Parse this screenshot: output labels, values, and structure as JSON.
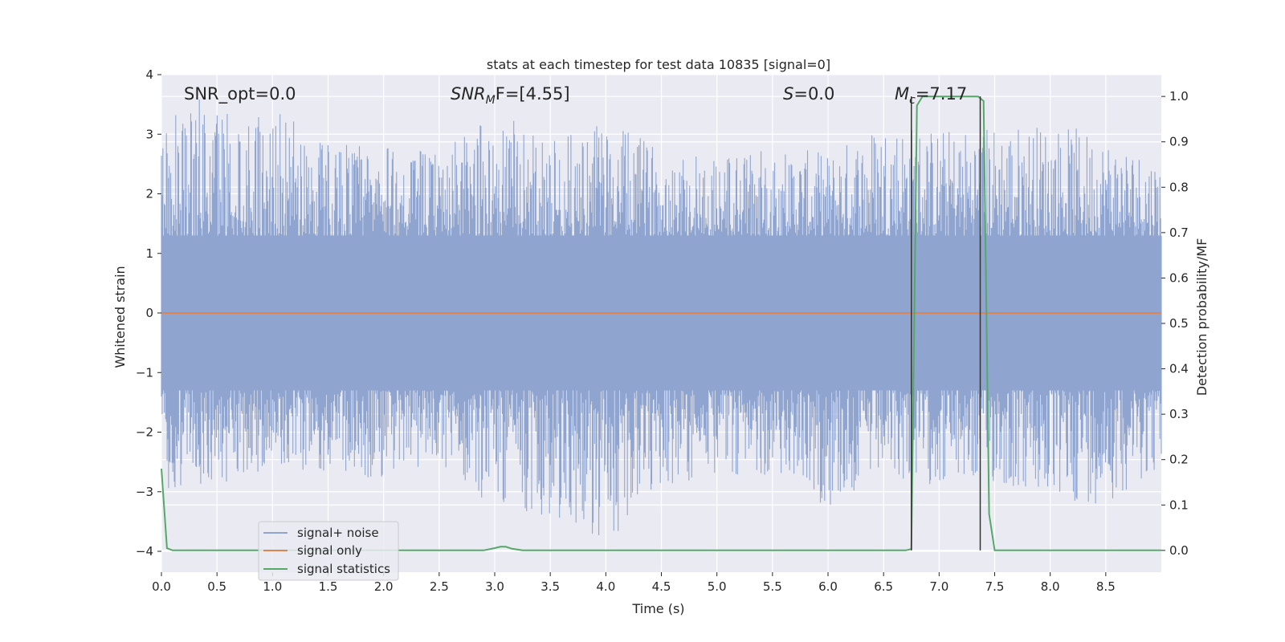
{
  "chart_data": {
    "type": "line",
    "title": "stats at each timestep for test data 10835 [signal=0]",
    "xlabel": "Time (s)",
    "ylabel": "Whitened strain",
    "y2label": "Detection probability/MF",
    "xlim": [
      0.0,
      9.0
    ],
    "ylim": [
      -4.35,
      4.0
    ],
    "y2lim": [
      -0.048,
      1.048
    ],
    "x_ticks": [
      0.0,
      0.5,
      1.0,
      1.5,
      2.0,
      2.5,
      3.0,
      3.5,
      4.0,
      4.5,
      5.0,
      5.5,
      6.0,
      6.5,
      7.0,
      7.5,
      8.0,
      8.5
    ],
    "x_tick_labels": [
      "0.0",
      "0.5",
      "1.0",
      "1.5",
      "2.0",
      "2.5",
      "3.0",
      "3.5",
      "4.0",
      "4.5",
      "5.0",
      "5.5",
      "6.0",
      "6.5",
      "7.0",
      "7.5",
      "8.0",
      "8.5"
    ],
    "y_ticks": [
      4,
      3,
      2,
      1,
      0,
      -1,
      -2,
      -3,
      -4
    ],
    "y_tick_labels": [
      "4",
      "3",
      "2",
      "1",
      "0",
      "−1",
      "−2",
      "−3",
      "−4"
    ],
    "y2_ticks": [
      1.0,
      0.9,
      0.8,
      0.7,
      0.6,
      0.5,
      0.4,
      0.3,
      0.2,
      0.1,
      0.0
    ],
    "y2_tick_labels": [
      "1.0",
      "0.9",
      "0.8",
      "0.7",
      "0.6",
      "0.5",
      "0.4",
      "0.3",
      "0.2",
      "0.1",
      "0.0"
    ],
    "grid": true,
    "legend_position": "lower-left",
    "noise_envelope": {
      "x": [
        0.0,
        0.5,
        1.0,
        1.5,
        2.0,
        2.5,
        3.0,
        3.5,
        4.0,
        4.5,
        5.0,
        5.5,
        6.0,
        6.5,
        7.0,
        7.5,
        8.0,
        8.5,
        9.0
      ],
      "upper": [
        3.6,
        3.6,
        3.4,
        3.0,
        2.8,
        2.7,
        3.4,
        2.9,
        3.2,
        2.8,
        2.7,
        2.8,
        2.7,
        3.3,
        3.1,
        3.2,
        3.2,
        3.0,
        2.6
      ],
      "lower": [
        -3.0,
        -2.9,
        -2.6,
        -2.7,
        -2.8,
        -2.5,
        -3.3,
        -3.4,
        -4.0,
        -2.9,
        -2.8,
        -2.7,
        -3.3,
        -2.8,
        -2.9,
        -2.9,
        -3.2,
        -3.2,
        -2.6
      ]
    },
    "series": [
      {
        "name": "signal+ noise",
        "color": "#8fa5cf",
        "axis": "left",
        "kind": "noise"
      },
      {
        "name": "signal only",
        "color": "#dd8452",
        "axis": "left",
        "x": [
          0.0,
          9.0
        ],
        "y": [
          0.0,
          0.0
        ]
      },
      {
        "name": "signal statistics",
        "color": "#55a868",
        "axis": "right",
        "x": [
          0.0,
          0.05,
          0.1,
          2.9,
          3.0,
          3.05,
          3.1,
          3.15,
          3.25,
          6.7,
          6.75,
          6.8,
          6.85,
          7.35,
          7.4,
          7.45,
          7.5,
          9.0
        ],
        "y": [
          0.18,
          0.005,
          0.0,
          0.0,
          0.005,
          0.008,
          0.008,
          0.004,
          0.0,
          0.0,
          0.003,
          0.98,
          1.0,
          1.0,
          0.99,
          0.08,
          0.0,
          0.0
        ]
      }
    ],
    "markers": {
      "x": [
        6.75,
        7.37
      ],
      "y": [
        1.0,
        0.0
      ],
      "color": "#333333"
    },
    "annotations": [
      {
        "text_id": "snr_opt",
        "x": 0.2
      },
      {
        "text_id": "snr_mf",
        "x": 2.6
      },
      {
        "text_id": "s_val",
        "x": 5.6
      },
      {
        "text_id": "mc_val",
        "x": 6.6
      }
    ]
  },
  "annotations_text": {
    "snr_opt": "SNR_opt=0.0",
    "snr_mf_main": "SNR",
    "snr_mf_sub": "M",
    "snr_mf_rest": "F=[4.55]",
    "s_main": "S",
    "s_rest": "=0.0",
    "mc_main": "M",
    "mc_sub": "c",
    "mc_rest": "=7.17"
  },
  "legend": {
    "items": [
      "signal+ noise",
      "signal only",
      "signal statistics"
    ]
  },
  "colors": {
    "plot_bg": "#eaeaf2",
    "grid": "#ffffff",
    "noise": "#8fa5cf",
    "signal_only": "#dd8452",
    "statistics": "#55a868"
  }
}
